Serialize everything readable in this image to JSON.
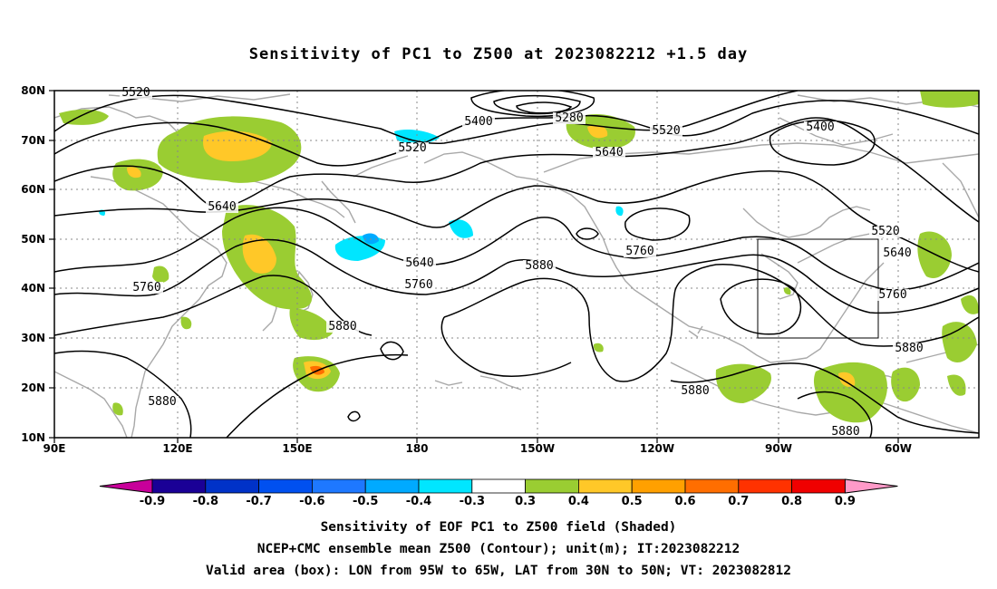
{
  "title": "Sensitivity of PC1 to Z500 at 2023082212 +1.5 day",
  "lat_labels": [
    "80N",
    "70N",
    "60N",
    "50N",
    "40N",
    "30N",
    "20N",
    "10N"
  ],
  "lon_labels": [
    "90E",
    "120E",
    "150E",
    "180",
    "150W",
    "120W",
    "90W",
    "60W"
  ],
  "contour_labels": [
    {
      "text": "5520"
    },
    {
      "text": "5400"
    },
    {
      "text": "5280"
    },
    {
      "text": "5520"
    },
    {
      "text": "5400"
    },
    {
      "text": "5520"
    },
    {
      "text": "5640"
    },
    {
      "text": "5640"
    },
    {
      "text": "5520"
    },
    {
      "text": "5640"
    },
    {
      "text": "5760"
    },
    {
      "text": "5640"
    },
    {
      "text": "5760"
    },
    {
      "text": "5880"
    },
    {
      "text": "5760"
    },
    {
      "text": "5760"
    },
    {
      "text": "5880"
    },
    {
      "text": "5880"
    },
    {
      "text": "5880"
    },
    {
      "text": "5880"
    },
    {
      "text": "5880"
    }
  ],
  "colorbar": {
    "labels": [
      "-0.9",
      "-0.8",
      "-0.7",
      "-0.6",
      "-0.5",
      "-0.4",
      "-0.3",
      "0.3",
      "0.4",
      "0.5",
      "0.6",
      "0.7",
      "0.8",
      "0.9"
    ],
    "colors": [
      "#1a0096",
      "#0032c8",
      "#0050f0",
      "#1e78ff",
      "#00aaff",
      "#00e6ff",
      "#ffffff",
      "#9acd32",
      "#ffc828",
      "#ffa000",
      "#ff6e00",
      "#ff3200",
      "#f00000"
    ],
    "low_end_color": "#c8009a",
    "high_end_color": "#ff9ac8"
  },
  "captions": [
    "Sensitivity of EOF PC1 to Z500 field (Shaded)",
    "NCEP+CMC ensemble mean Z500 (Contour); unit(m); IT:2023082212",
    "Valid area (box): LON from 95W to 65W, LAT from 30N to 50N; VT: 2023082812"
  ]
}
